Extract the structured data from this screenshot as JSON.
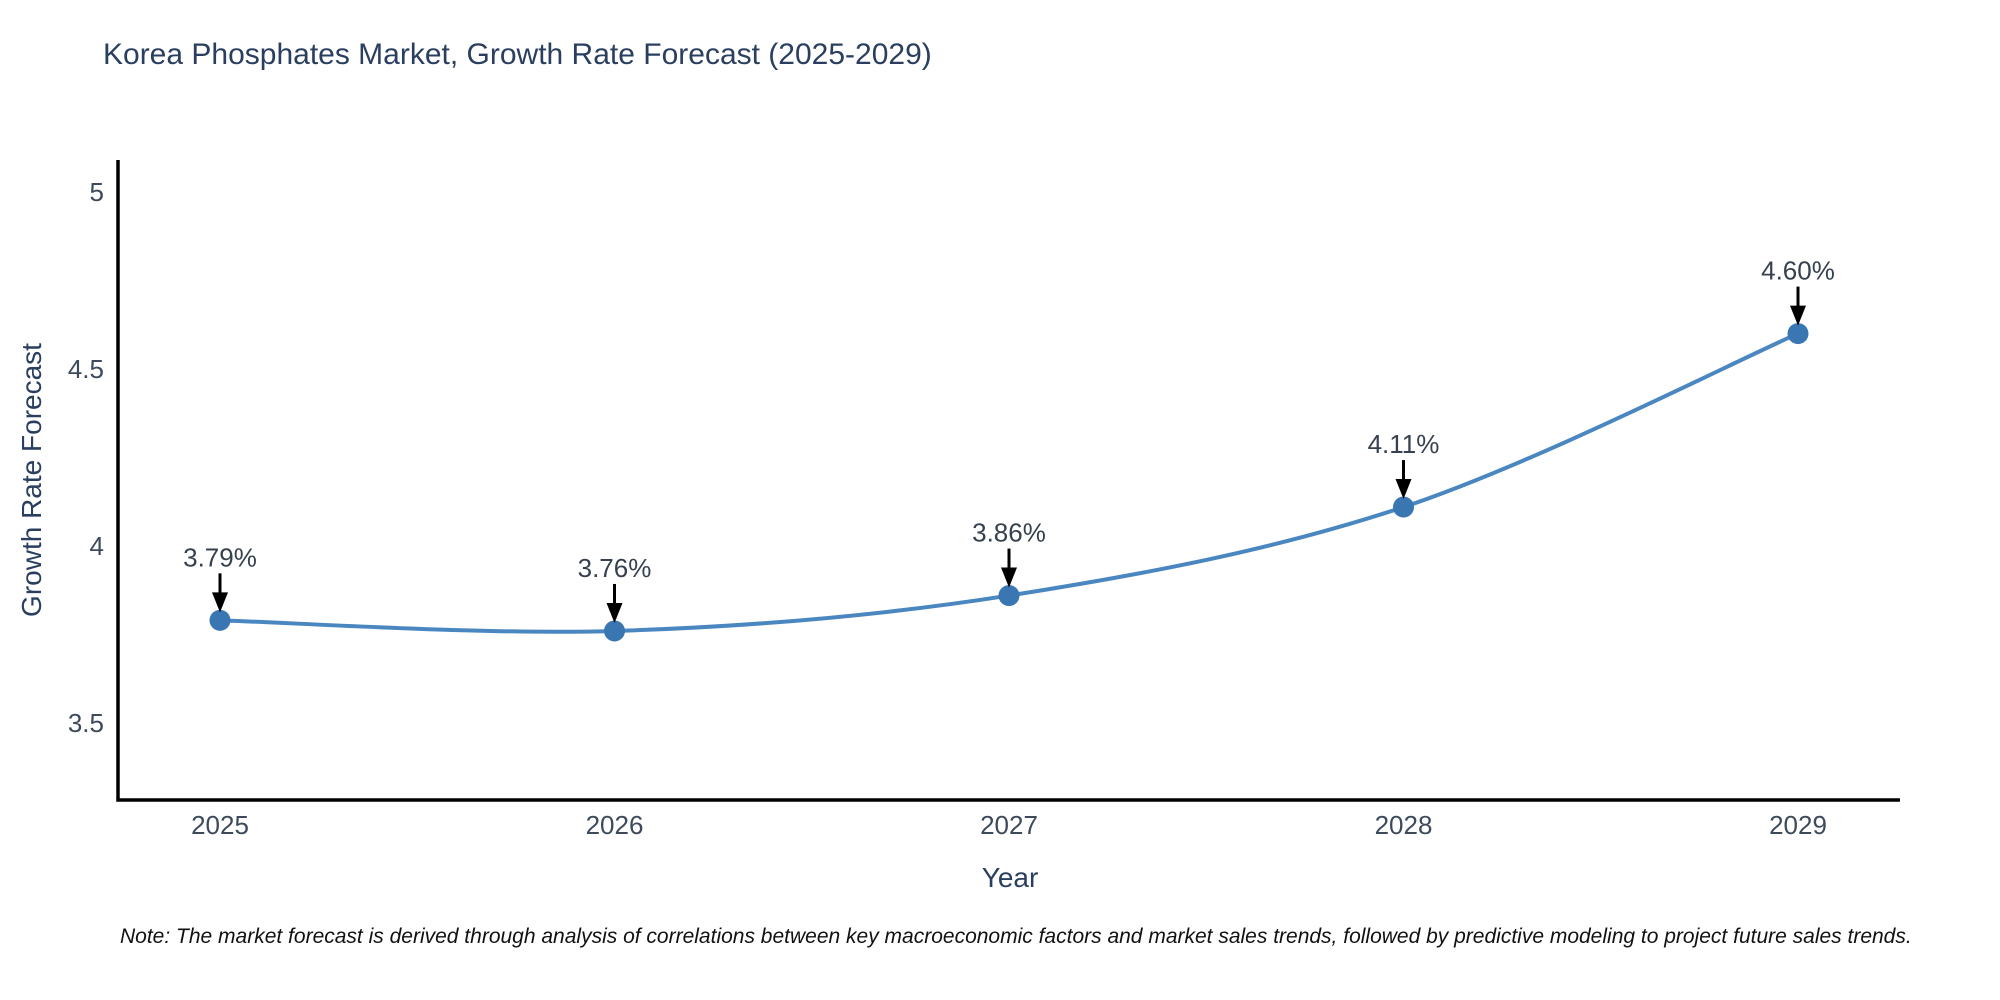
{
  "chart_data": {
    "type": "line",
    "title": "Korea Phosphates Market, Growth Rate Forecast (2025-2029)",
    "xlabel": "Year",
    "ylabel": "Growth Rate Forecast",
    "x": [
      2025,
      2026,
      2027,
      2028,
      2029
    ],
    "values": [
      3.79,
      3.76,
      3.86,
      4.11,
      4.6
    ],
    "point_labels": [
      "3.79%",
      "3.76%",
      "3.86%",
      "4.11%",
      "4.60%"
    ],
    "xtick_labels": [
      "2025",
      "2026",
      "2027",
      "2028",
      "2029"
    ],
    "ytick_values": [
      5,
      4.5,
      4,
      3.5
    ],
    "ytick_labels": [
      "5",
      "4.5",
      "4",
      "3.5"
    ],
    "ylim": [
      3.28,
      5.09
    ],
    "line_shape": "spline",
    "grid": false,
    "legend": "none",
    "colors": {
      "line": "#4a87c1",
      "marker": "#3a77b2",
      "axis": "#000000",
      "arrow": "#000000",
      "title_text": "#2a3f5f",
      "tick_text": "#3d4a5c",
      "annotation_text": "#36414f",
      "background": "#ffffff"
    }
  },
  "note": "Note: The market forecast is derived through analysis of correlations between key macroeconomic factors and market sales trends, followed by predictive modeling to project future sales trends."
}
